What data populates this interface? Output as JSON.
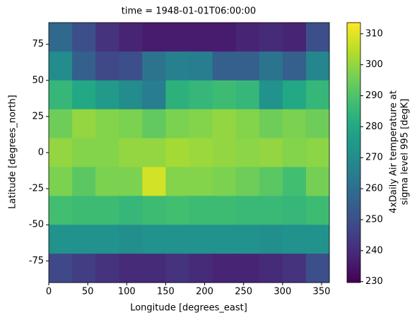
{
  "chart_data": {
    "type": "heatmap",
    "title": "time = 1948-01-01T06:00:00",
    "x_label": "Longitude [degrees_east]",
    "y_label": "Latitude [degrees_north]",
    "colorbar_label": [
      "4xDaily Air temperature at",
      "sigma level 995 [degK]"
    ],
    "colormap": "viridis",
    "x": [
      15,
      45,
      75,
      105,
      135,
      165,
      195,
      225,
      255,
      285,
      315,
      345
    ],
    "y": [
      80,
      60,
      40,
      20,
      0,
      -20,
      -40,
      -60,
      -80
    ],
    "values": [
      [
        258,
        250,
        242,
        238,
        236,
        236,
        236,
        236,
        238,
        240,
        238,
        250
      ],
      [
        270,
        255,
        248,
        250,
        262,
        266,
        265,
        255,
        255,
        262,
        255,
        268
      ],
      [
        285,
        280,
        275,
        270,
        265,
        283,
        285,
        287,
        285,
        272,
        280,
        285
      ],
      [
        295,
        300,
        298,
        297,
        293,
        297,
        298,
        300,
        298,
        295,
        297,
        295
      ],
      [
        300,
        298,
        298,
        300,
        300,
        302,
        301,
        300,
        299,
        300,
        298,
        299
      ],
      [
        297,
        292,
        297,
        297,
        308,
        298,
        298,
        297,
        295,
        292,
        288,
        296
      ],
      [
        288,
        287,
        287,
        285,
        287,
        288,
        287,
        287,
        286,
        286,
        285,
        287
      ],
      [
        272,
        272,
        272,
        271,
        272,
        272,
        272,
        272,
        272,
        271,
        272,
        272
      ],
      [
        248,
        245,
        242,
        240,
        240,
        242,
        240,
        238,
        238,
        240,
        242,
        250
      ]
    ],
    "xlim": [
      0,
      360
    ],
    "ylim": [
      -90,
      90
    ],
    "clim": [
      229.7,
      313.6
    ],
    "xticks": [
      0,
      50,
      100,
      150,
      200,
      250,
      300,
      350
    ],
    "yticks": [
      -75,
      -50,
      -25,
      0,
      25,
      50,
      75
    ],
    "cticks": [
      230,
      240,
      250,
      260,
      270,
      280,
      290,
      300,
      310
    ]
  }
}
